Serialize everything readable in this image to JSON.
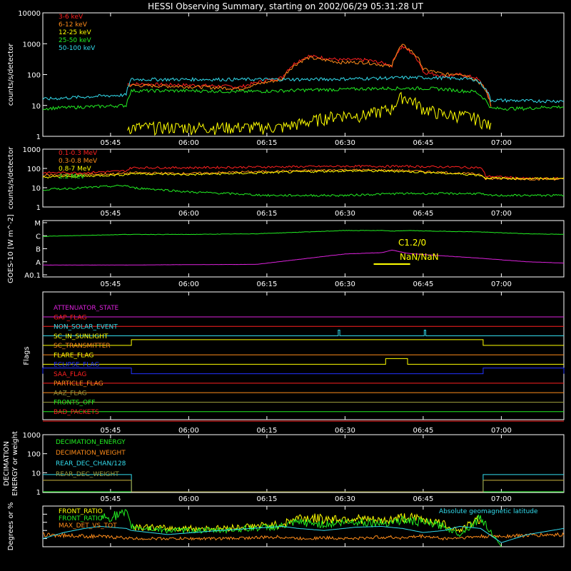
{
  "title": "HESSI Observing Summary, starting on 2002/06/29 05:31:28 UT",
  "colors": {
    "background": "#000000",
    "axis": "#ffffff",
    "red": "#ff2020",
    "orange": "#ff8c1a",
    "yellow": "#ffff00",
    "green": "#22ee22",
    "cyan": "#33ddee",
    "magenta": "#dd22dd",
    "blue": "#2233ff",
    "olive": "#9a9a3a"
  },
  "chart_data": [
    {
      "type": "line",
      "panel": "low-energy-count-rates",
      "ylabel": "counts/s/detector",
      "yscale": "log",
      "ylim": [
        1,
        10000
      ],
      "yticks": [
        "1",
        "10",
        "100",
        "1000",
        "10000"
      ],
      "xticks": [
        "05:45",
        "06:00",
        "06:15",
        "06:30",
        "06:45",
        "07:00"
      ],
      "x_minutes_of_day": [
        332,
        348,
        349,
        362,
        370,
        378,
        383,
        389,
        394,
        399,
        401,
        405,
        409,
        412,
        415,
        418,
        425,
        429,
        432
      ],
      "series": [
        {
          "name": "3-6 keV",
          "color": "red",
          "values": [
            null,
            50,
            50,
            45,
            40,
            80,
            400,
            300,
            300,
            200,
            800,
            120,
            90,
            100,
            80,
            10,
            null,
            null,
            null
          ]
        },
        {
          "name": "6-12 keV",
          "color": "orange",
          "values": [
            null,
            45,
            45,
            40,
            35,
            70,
            350,
            250,
            250,
            180,
            900,
            150,
            100,
            110,
            70,
            9,
            null,
            null,
            null
          ]
        },
        {
          "name": "12-25 keV",
          "color": "yellow",
          "values": [
            null,
            2,
            2,
            2,
            2,
            2,
            3,
            5,
            5,
            8,
            20,
            8,
            5,
            5,
            4,
            2,
            null,
            null,
            null
          ]
        },
        {
          "name": "25-50 keV",
          "color": "green",
          "values": [
            8,
            10,
            30,
            30,
            28,
            30,
            32,
            33,
            35,
            36,
            36,
            36,
            34,
            30,
            28,
            8,
            8,
            9,
            9
          ]
        },
        {
          "name": "50-100 keV",
          "color": "cyan",
          "values": [
            16,
            22,
            70,
            70,
            70,
            70,
            70,
            72,
            75,
            78,
            80,
            80,
            78,
            75,
            70,
            15,
            14,
            14,
            14
          ]
        }
      ]
    },
    {
      "type": "line",
      "panel": "high-energy-count-rates",
      "ylabel": "counts/s/detector",
      "yscale": "log",
      "ylim": [
        1,
        1000
      ],
      "yticks": [
        "1",
        "10",
        "100",
        "1000"
      ],
      "xticks": [
        "05:45",
        "06:00",
        "06:15",
        "06:30",
        "06:45",
        "07:00"
      ],
      "x_minutes_of_day": [
        332,
        340,
        348,
        349,
        360,
        375,
        390,
        400,
        410,
        416,
        417,
        425,
        432
      ],
      "series": [
        {
          "name": "0.1-0.3 MeV",
          "color": "red",
          "values": [
            60,
            60,
            75,
            110,
            110,
            120,
            130,
            130,
            120,
            110,
            40,
            30,
            30
          ]
        },
        {
          "name": "0.3-0.8 MeV",
          "color": "orange",
          "values": [
            45,
            48,
            55,
            60,
            55,
            70,
            85,
            80,
            60,
            50,
            30,
            28,
            28
          ]
        },
        {
          "name": "0.8-7 MeV",
          "color": "yellow",
          "values": [
            35,
            40,
            48,
            55,
            48,
            60,
            75,
            72,
            55,
            45,
            32,
            30,
            30
          ]
        },
        {
          "name": "2.2 MeV",
          "color": "green",
          "values": [
            8,
            10,
            13,
            10,
            6,
            4,
            4,
            5,
            5,
            5,
            4,
            4,
            4
          ]
        }
      ]
    },
    {
      "type": "line",
      "panel": "goes-flux",
      "ylabel": "GOES-10 [W m^-2]",
      "yticklabels": [
        "A0.1",
        "A",
        "B",
        "C",
        "M"
      ],
      "xticks": [
        "05:45",
        "06:00",
        "06:15",
        "06:30",
        "06:45",
        "07:00"
      ],
      "annotation_class": "C1.2/0",
      "annotation_ratio": "NaN/NaN",
      "x_minutes_of_day": [
        332,
        348,
        360,
        373,
        390,
        397,
        399,
        402,
        407,
        415,
        425,
        432
      ],
      "series": [
        {
          "name": "long",
          "color": "green",
          "level": [
            2.95,
            3.1,
            3.1,
            3.15,
            3.4,
            3.4,
            3.35,
            3.4,
            3.35,
            3.3,
            3.15,
            3.1
          ]
        },
        {
          "name": "short",
          "color": "magenta",
          "level": [
            0.75,
            0.75,
            0.78,
            0.8,
            1.6,
            1.7,
            1.9,
            1.65,
            1.5,
            1.3,
            1.0,
            0.9
          ]
        }
      ]
    },
    {
      "type": "line",
      "panel": "flags",
      "ylabel": "Flags",
      "xticks": [
        "05:45",
        "06:00",
        "06:15",
        "06:30",
        "06:45",
        "07:00"
      ],
      "flags": [
        {
          "name": "ATTENUATOR_STATE",
          "color": "magenta"
        },
        {
          "name": "GAP_FLAG",
          "color": "red"
        },
        {
          "name": "NON_SOLAR_EVENT",
          "color": "cyan"
        },
        {
          "name": "SC_IN_SUNLIGHT",
          "color": "yellow"
        },
        {
          "name": "SC_TRANSMITTER",
          "color": "orange"
        },
        {
          "name": "FLARE_FLAG",
          "color": "yellow"
        },
        {
          "name": "ECLIPSE_FLAG",
          "color": "blue"
        },
        {
          "name": "SAA_FLAG",
          "color": "red"
        },
        {
          "name": "PARTICLE_FLAG",
          "color": "orange"
        },
        {
          "name": "AAZ_FLAG",
          "color": "olive"
        },
        {
          "name": "FRONTS_OFF",
          "color": "green"
        },
        {
          "name": "BAD_PACKETS",
          "color": "red"
        }
      ],
      "intervals": [
        {
          "flag": "NON_SOLAR_EVENT",
          "from": 388.7,
          "to": 389.0
        },
        {
          "flag": "NON_SOLAR_EVENT",
          "from": 405.2,
          "to": 405.5
        },
        {
          "flag": "SC_IN_SUNLIGHT",
          "from": 349.0,
          "to": 416.5
        },
        {
          "flag": "FLARE_FLAG",
          "from": 397.8,
          "to": 402.0
        },
        {
          "flag": "ECLIPSE_FLAG",
          "from": 332.0,
          "to": 349.0
        },
        {
          "flag": "ECLIPSE_FLAG",
          "from": 416.5,
          "to": 432.0
        }
      ]
    },
    {
      "type": "line",
      "panel": "decimation",
      "ylabel": "DECIMATION ENERGY or weight",
      "yscale": "log",
      "ylim": [
        1,
        1000
      ],
      "yticks": [
        "1",
        "10",
        "100",
        "1000"
      ],
      "xticks": [
        "05:45",
        "06:00",
        "06:15",
        "06:30",
        "06:45",
        "07:00"
      ],
      "x_minutes_of_day": [
        332,
        349,
        349.01,
        416.5,
        416.51,
        432
      ],
      "series": [
        {
          "name": "DECIMATION_ENERGY",
          "color": "green",
          "values": [
            1,
            1,
            1,
            1,
            1,
            1
          ]
        },
        {
          "name": "DECIMATION_WEIGHT",
          "color": "orange",
          "values": [
            4,
            4,
            1,
            1,
            4,
            4
          ]
        },
        {
          "name": "REAR_DEC_CHAN/128",
          "color": "cyan",
          "values": [
            8,
            8,
            1,
            1,
            8,
            8
          ]
        },
        {
          "name": "REAR_DEC_WEIGHT",
          "color": "olive",
          "values": [
            4,
            4,
            1,
            1,
            4,
            4
          ]
        }
      ]
    },
    {
      "type": "line",
      "panel": "ratios",
      "ylabel": "Degrees or %",
      "annotation": "Absolute geomagnetic latitude",
      "xticks": [
        "05:45",
        "06:00",
        "06:15",
        "06:30",
        "06:45",
        "07:00"
      ],
      "x_minutes_of_day": [
        332,
        336,
        340,
        343,
        348,
        349,
        356,
        366,
        372,
        378,
        381,
        386,
        392,
        397,
        401,
        405,
        409,
        412,
        416,
        420,
        425,
        432
      ],
      "series": [
        {
          "name": "FRONT_RATIO",
          "color": "yellow",
          "values": [
            null,
            null,
            null,
            null,
            null,
            50,
            45,
            45,
            50,
            55,
            72,
            68,
            70,
            62,
            72,
            68,
            55,
            40,
            70,
            null,
            null,
            null
          ]
        },
        {
          "name": "FRONT_RATIO",
          "color": "green",
          "values": [
            null,
            null,
            null,
            70,
            80,
            50,
            40,
            40,
            45,
            50,
            60,
            55,
            62,
            58,
            65,
            60,
            50,
            30,
            72,
            0,
            null,
            null
          ]
        },
        {
          "name": "MAX_DET_VS_TOT",
          "color": "orange",
          "values": [
            30,
            28,
            26,
            25,
            22,
            20,
            20,
            20,
            22,
            24,
            20,
            22,
            20,
            24,
            22,
            26,
            20,
            22,
            25,
            26,
            28,
            30
          ]
        },
        {
          "name": "Absolute geomagnetic latitude",
          "color": "cyan",
          "values": [
            20,
            35,
            45,
            50,
            45,
            40,
            30,
            40,
            45,
            50,
            45,
            40,
            48,
            50,
            45,
            35,
            40,
            50,
            45,
            10,
            30,
            45
          ]
        }
      ]
    }
  ]
}
